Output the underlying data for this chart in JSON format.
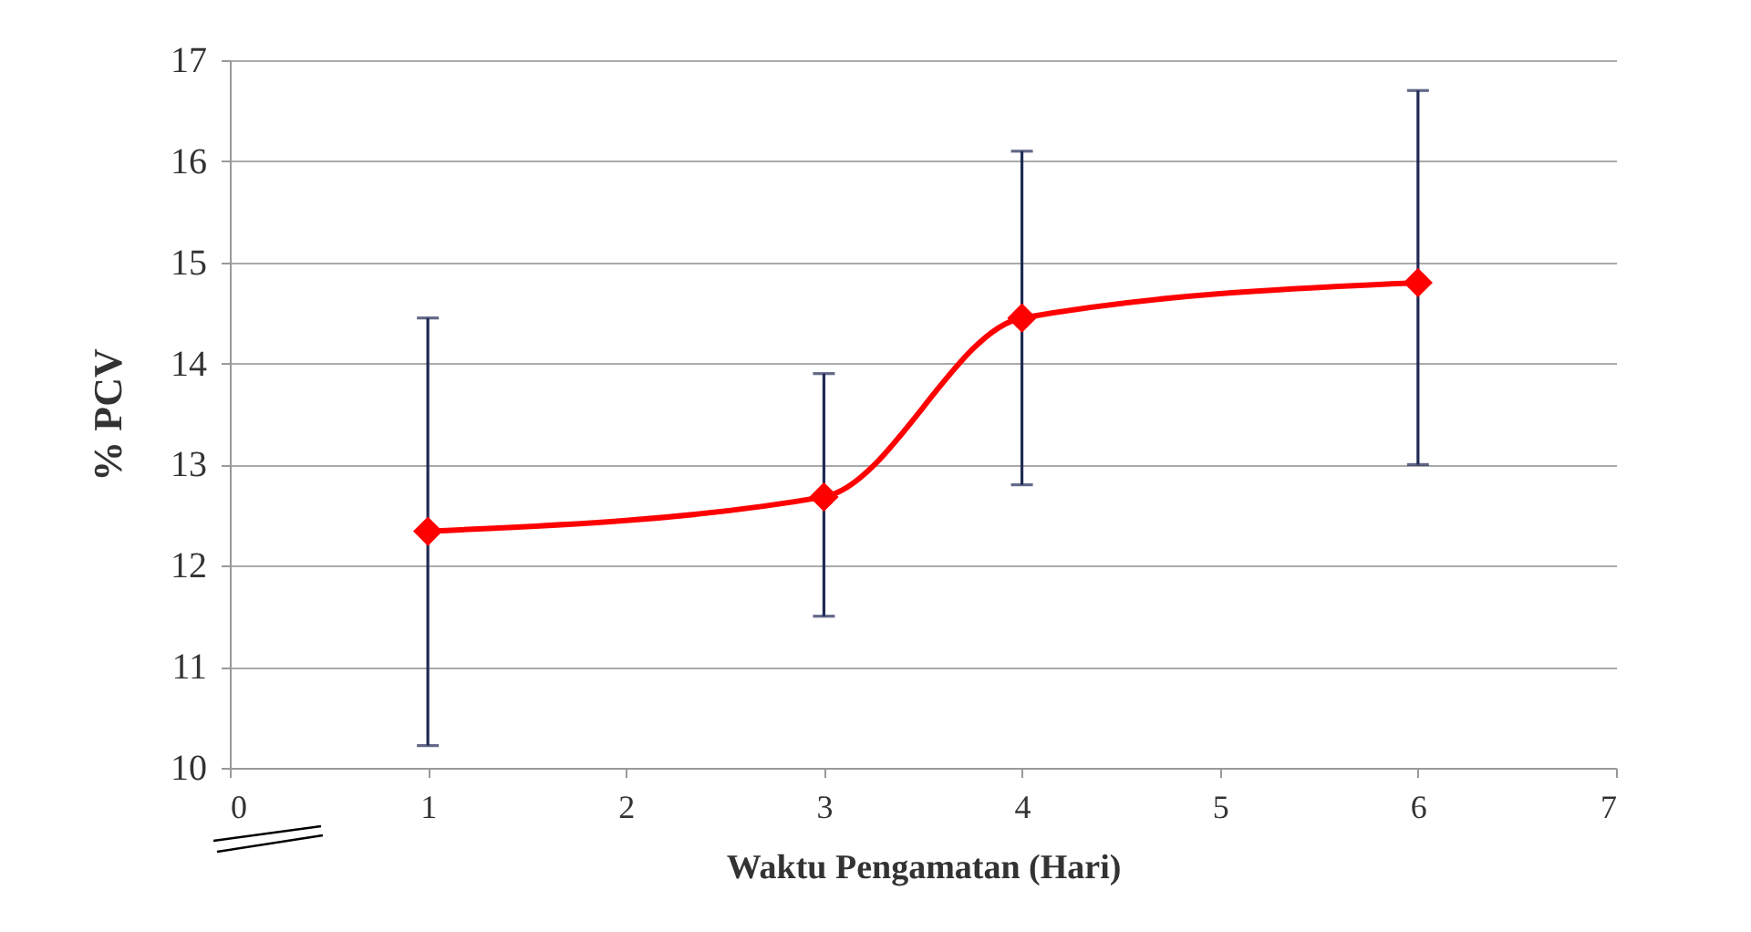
{
  "chart_data": {
    "type": "line",
    "xlabel": "Waktu Pengamatan (Hari)",
    "ylabel": "% PCV",
    "x": [
      1,
      3,
      4,
      6
    ],
    "series": [
      {
        "color": "#ff0000",
        "values": [
          12.34,
          12.68,
          14.45,
          14.8
        ],
        "errors": [
          [
            10.22,
            14.45
          ],
          [
            11.5,
            13.9
          ],
          [
            12.8,
            16.1
          ],
          [
            13.0,
            16.7
          ]
        ]
      }
    ],
    "xlim": [
      0,
      7
    ],
    "xticks": [
      0,
      1,
      2,
      3,
      4,
      5,
      6,
      7
    ],
    "ylim": [
      10,
      17
    ],
    "yticks": [
      10,
      11,
      12,
      13,
      14,
      15,
      16,
      17
    ],
    "grid": "y",
    "marker": "diamond",
    "line_style": "solid"
  }
}
